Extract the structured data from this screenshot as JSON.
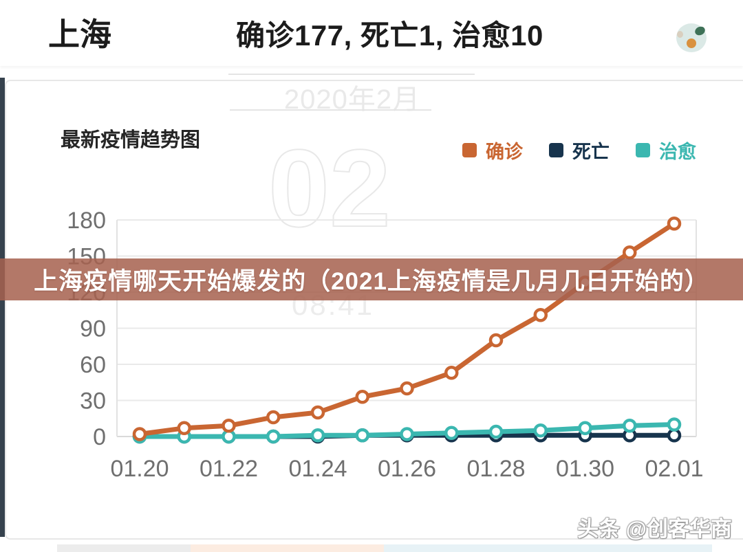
{
  "header": {
    "city": "上海",
    "stats": "确诊177, 死亡1, 治愈10"
  },
  "chart": {
    "title": "最新疫情趋势图",
    "legend": [
      {
        "label": "确诊",
        "color": "#c96632"
      },
      {
        "label": "死亡",
        "color": "#17344d"
      },
      {
        "label": "治愈",
        "color": "#3bb7b0"
      }
    ]
  },
  "chart_data": {
    "type": "line",
    "title": "最新疫情趋势图",
    "x": [
      "01.20",
      "01.21",
      "01.22",
      "01.23",
      "01.24",
      "01.25",
      "01.26",
      "01.27",
      "01.28",
      "01.29",
      "01.30",
      "01.31",
      "02.01"
    ],
    "x_ticks_shown": [
      "01.20",
      "01.22",
      "01.24",
      "01.26",
      "01.28",
      "01.30",
      "02.01"
    ],
    "series": [
      {
        "name": "确诊",
        "color": "#c96632",
        "values": [
          2,
          7,
          9,
          16,
          20,
          33,
          40,
          53,
          80,
          101,
          128,
          153,
          177
        ]
      },
      {
        "name": "死亡",
        "color": "#17344d",
        "values": [
          0,
          0,
          0,
          0,
          0,
          1,
          1,
          1,
          1,
          1,
          1,
          1,
          1
        ]
      },
      {
        "name": "治愈",
        "color": "#3bb7b0",
        "values": [
          0,
          0,
          0,
          0,
          1,
          1,
          2,
          3,
          4,
          5,
          7,
          9,
          10
        ]
      }
    ],
    "xlabel": "",
    "ylabel": "",
    "ylim": [
      0,
      180
    ],
    "yticks": [
      0,
      30,
      60,
      90,
      120,
      150,
      180
    ],
    "grid": true,
    "legend_position": "top-right"
  },
  "overlay": {
    "banner_text": "上海疫情哪天开始爆发的（2021上海疫情是几月几日开始的）",
    "watermark_date": "2020年2月",
    "watermark_day": "02",
    "watermark_time": "08:41",
    "credit": "头条 @创客华商"
  },
  "colors": {
    "confirmed": "#c96632",
    "death": "#17344d",
    "cured": "#3bb7b0",
    "banner_background": "#a7624f",
    "axis_label": "#6f6f6f",
    "gridline": "#e9e9e9"
  }
}
